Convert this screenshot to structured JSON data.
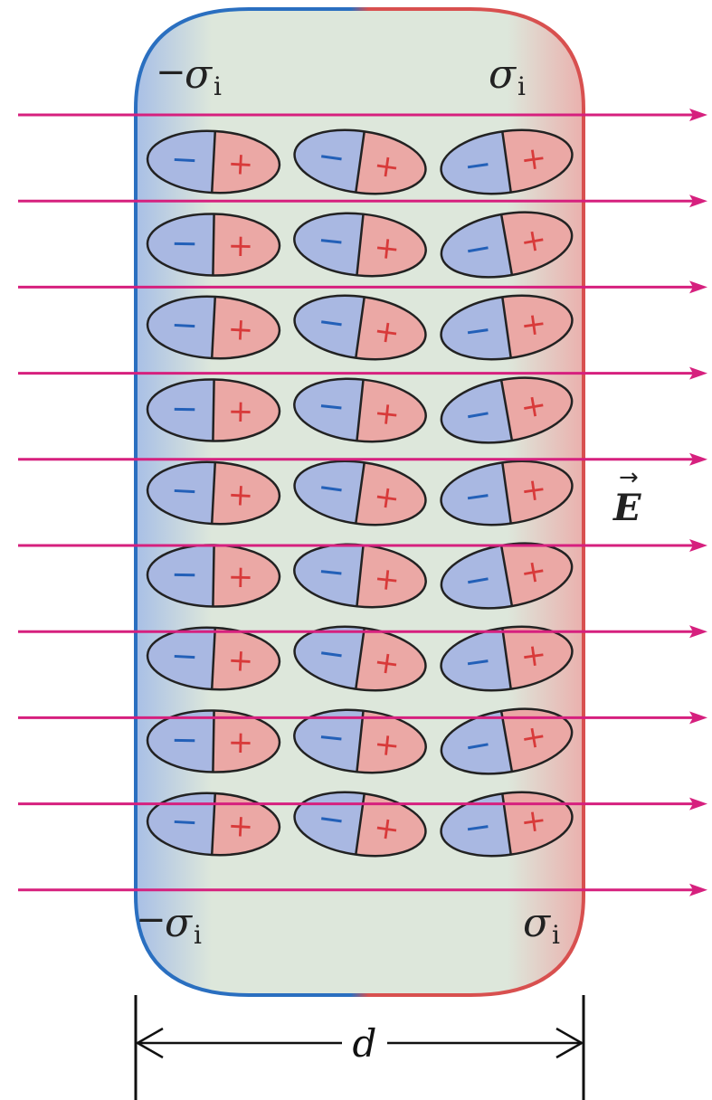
{
  "diagram": {
    "sigma": "σ",
    "sigma_sub": "i",
    "minus_sign": "−",
    "plus_sign": "+",
    "field_vector_label": "E",
    "field_arrow_symbol": "→",
    "width_label": "d"
  },
  "molecules": {
    "rows": 9,
    "columns": 3,
    "negative_symbol": "−",
    "positive_symbol": "+"
  },
  "field_lines": {
    "count": 10
  },
  "colors": {
    "field_line": "#d6207e",
    "negative_side": "#2a6fc0",
    "positive_side": "#d8504f",
    "slab_fill": "#dde7db",
    "molecule_negative_fill": "#a9b8e2",
    "molecule_positive_fill": "#eba8a5",
    "molecule_outline": "#222222",
    "minus_color": "#2360b8",
    "plus_color": "#d83a3a"
  }
}
